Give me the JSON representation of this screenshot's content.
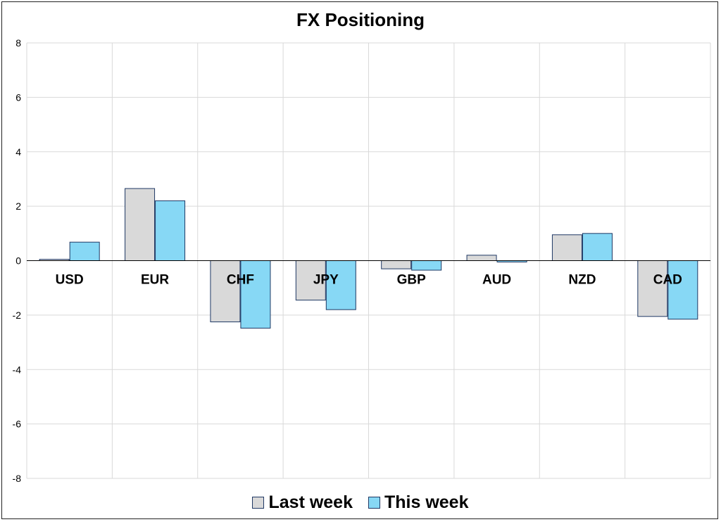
{
  "chart_data": {
    "type": "bar",
    "title": "FX Positioning",
    "categories": [
      "USD",
      "EUR",
      "CHF",
      "JPY",
      "GBP",
      "AUD",
      "NZD",
      "CAD"
    ],
    "series": [
      {
        "name": "Last week",
        "color": "#d9d9d9",
        "values": [
          0.05,
          2.65,
          -2.25,
          -1.45,
          -0.3,
          0.2,
          0.95,
          -2.05
        ]
      },
      {
        "name": "This week",
        "color": "#87d8f5",
        "values": [
          0.68,
          2.2,
          -2.48,
          -1.8,
          -0.35,
          -0.05,
          1.0,
          -2.15
        ]
      }
    ],
    "ylim": [
      -8,
      8
    ],
    "yticks": [
      8,
      6,
      4,
      2,
      0,
      -2,
      -4,
      -6,
      -8
    ],
    "xlabel": "",
    "ylabel": "",
    "grid": true,
    "legend_position": "bottom"
  }
}
